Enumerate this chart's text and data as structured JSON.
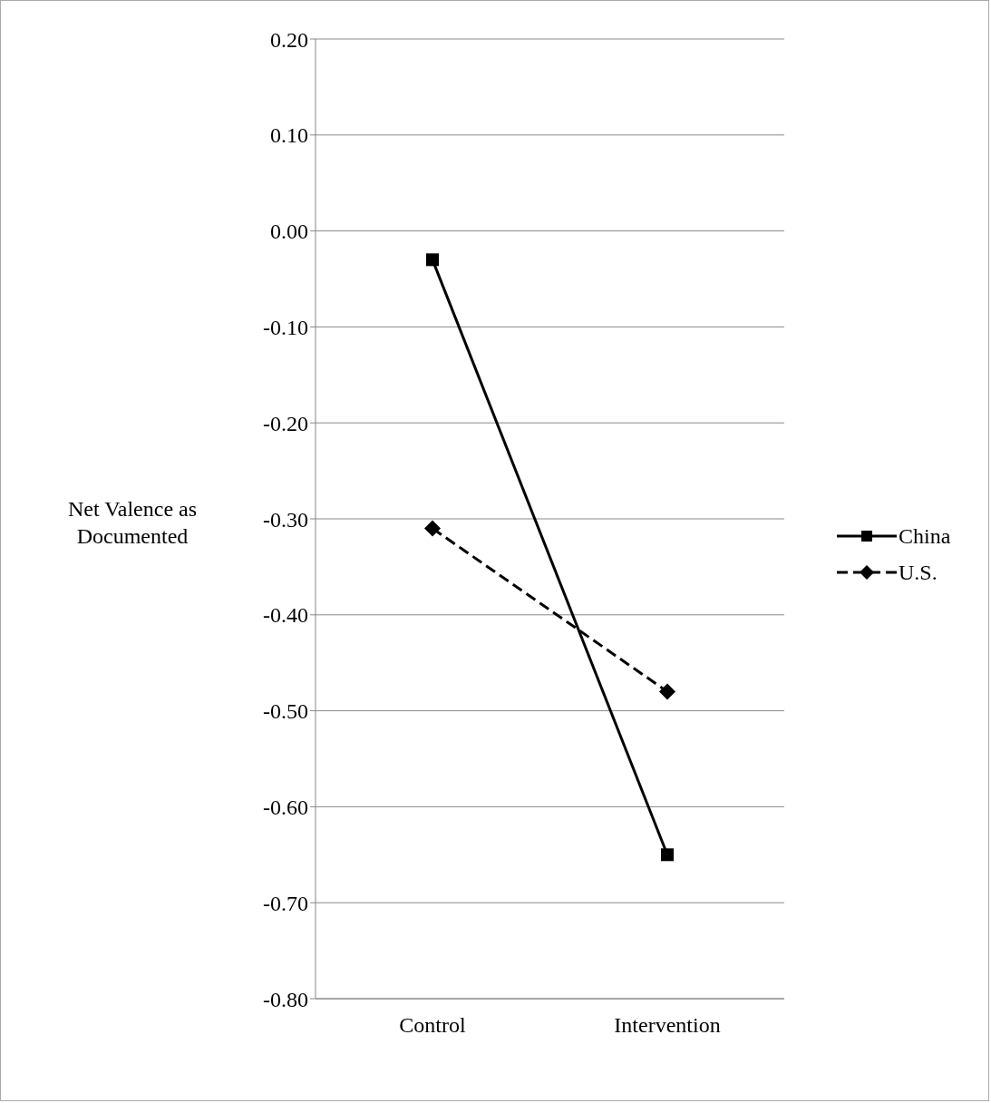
{
  "chart_data": {
    "type": "line",
    "ylabel": "Net Valence as Documented",
    "categories": [
      "Control",
      "Intervention"
    ],
    "series": [
      {
        "name": "China",
        "color": "#000000",
        "values": [
          -0.03,
          -0.65
        ],
        "marker": "square",
        "line_style": "solid"
      },
      {
        "name": "U.S.",
        "color": "#000000",
        "values": [
          -0.31,
          -0.48
        ],
        "marker": "diamond",
        "line_style": "dashed"
      }
    ],
    "ylim": [
      -0.8,
      0.2
    ],
    "yticks": [
      {
        "value": -0.8,
        "label": "-0.80"
      },
      {
        "value": -0.7,
        "label": "-0.70"
      },
      {
        "value": -0.6,
        "label": "-0.60"
      },
      {
        "value": -0.5,
        "label": "-0.50"
      },
      {
        "value": -0.4,
        "label": "-0.40"
      },
      {
        "value": -0.3,
        "label": "-0.30"
      },
      {
        "value": -0.2,
        "label": "-0.20"
      },
      {
        "value": -0.1,
        "label": "-0.10"
      },
      {
        "value": 0,
        "label": "0.00"
      },
      {
        "value": 0.1,
        "label": "0.10"
      },
      {
        "value": 0.2,
        "label": "0.20"
      }
    ],
    "grid": "y",
    "legend": "right"
  }
}
